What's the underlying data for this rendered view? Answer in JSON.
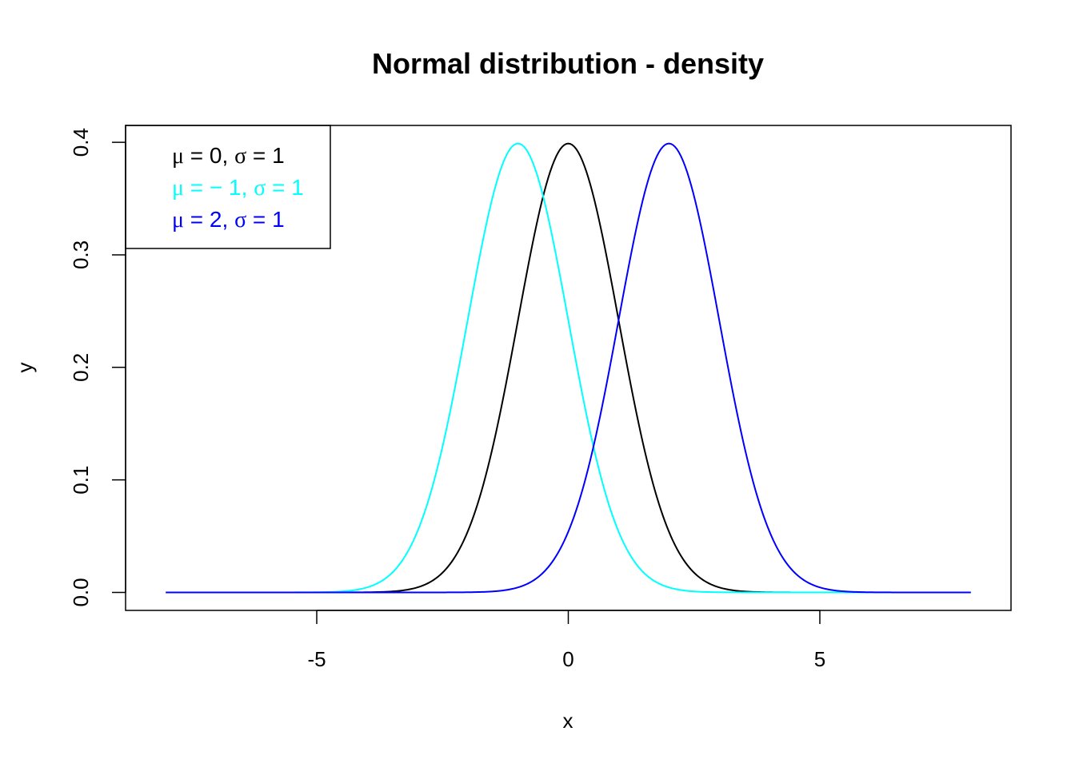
{
  "chart_data": {
    "type": "line",
    "title": "Normal distribution - density",
    "xlabel": "x",
    "ylabel": "y",
    "xlim": [
      -8.8,
      8.8
    ],
    "ylim": [
      -0.016,
      0.415
    ],
    "x_ticks": [
      -5,
      0,
      5
    ],
    "x_tick_labels": [
      "-5",
      "0",
      "5"
    ],
    "y_ticks": [
      0.0,
      0.1,
      0.2,
      0.3,
      0.4
    ],
    "y_tick_labels": [
      "0.0",
      "0.1",
      "0.2",
      "0.3",
      "0.4"
    ],
    "x_range": [
      -8,
      8
    ],
    "grid": false,
    "legend_position": "top-left",
    "series": [
      {
        "name": "μ = 0, σ = 1",
        "mu": 0,
        "sigma": 1,
        "color": "#000000",
        "legend_parts": [
          {
            "t": "μ",
            "greek": true
          },
          {
            "t": " = 0, "
          },
          {
            "t": "σ",
            "greek": true
          },
          {
            "t": " = 1"
          }
        ]
      },
      {
        "name": "μ =  − 1, σ = 1",
        "mu": -1,
        "sigma": 1,
        "color": "#00FFFF",
        "legend_parts": [
          {
            "t": "μ",
            "greek": true
          },
          {
            "t": " =  − 1, "
          },
          {
            "t": "σ",
            "greek": true
          },
          {
            "t": " = 1"
          }
        ]
      },
      {
        "name": "μ = 2, σ = 1",
        "mu": 2,
        "sigma": 1,
        "color": "#0000FF",
        "legend_parts": [
          {
            "t": "μ",
            "greek": true
          },
          {
            "t": " = 2, "
          },
          {
            "t": "σ",
            "greek": true
          },
          {
            "t": " = 1"
          }
        ]
      }
    ]
  }
}
